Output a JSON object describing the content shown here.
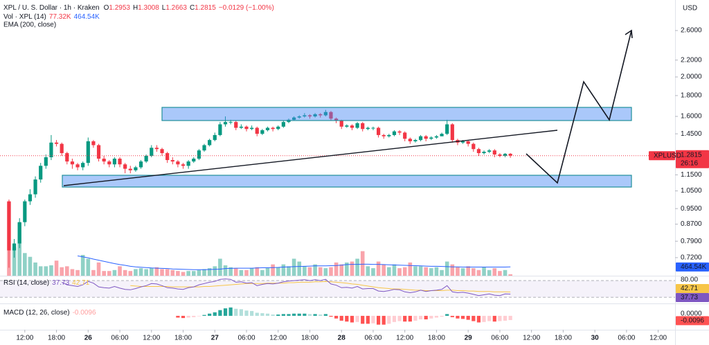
{
  "header": {
    "symbol": "XPL / U. S. Dollar · 1h · Kraken",
    "field_keys": [
      "O",
      "H",
      "L",
      "C"
    ],
    "change": "−0.0129 (−1.00%)",
    "volume_title": "Vol · XPL (14)",
    "ema_title": "EMA (200, close)",
    "rsi_title": "RSI (14, close)",
    "macd_title": "MACD (12, 26, close)",
    "currency": "USD",
    "countdown": "26:16",
    "ticker": "XPLUSD"
  },
  "chart_data": {
    "type": "candlestick",
    "scale": "log",
    "up_color": "#089981",
    "down_color": "#f23645",
    "x": [
      9,
      10,
      11,
      12,
      13,
      14,
      15,
      16,
      17,
      18,
      19,
      20,
      21,
      22,
      23,
      24,
      25,
      26,
      27,
      28,
      29,
      30,
      31,
      32,
      33,
      34,
      35,
      36,
      37,
      38,
      39,
      40,
      41,
      42,
      43,
      44,
      45,
      46,
      47,
      48,
      49,
      50,
      51,
      52,
      53,
      54,
      55,
      56,
      57,
      58,
      59,
      60,
      61,
      62,
      63,
      64,
      65,
      66,
      67,
      68,
      69,
      70,
      71,
      72,
      73,
      74,
      75,
      76,
      77,
      78,
      79,
      80,
      81,
      82,
      83,
      84,
      85,
      86,
      87,
      88,
      89,
      90,
      91,
      92,
      93,
      94,
      95,
      96,
      97,
      98,
      99,
      100,
      101,
      102,
      103,
      104
    ],
    "open": [
      0.99,
      0.75,
      0.78,
      0.88,
      0.99,
      1.03,
      1.12,
      1.21,
      1.27,
      1.38,
      1.37,
      1.3,
      1.24,
      1.22,
      1.2,
      1.23,
      1.39,
      1.36,
      1.26,
      1.24,
      1.22,
      1.26,
      1.22,
      1.19,
      1.18,
      1.2,
      1.24,
      1.28,
      1.34,
      1.33,
      1.3,
      1.25,
      1.24,
      1.22,
      1.21,
      1.24,
      1.26,
      1.32,
      1.36,
      1.4,
      1.44,
      1.53,
      1.55,
      1.55,
      1.5,
      1.51,
      1.49,
      1.5,
      1.45,
      1.48,
      1.5,
      1.49,
      1.51,
      1.55,
      1.57,
      1.59,
      1.6,
      1.61,
      1.6,
      1.62,
      1.61,
      1.64,
      1.58,
      1.56,
      1.51,
      1.52,
      1.5,
      1.54,
      1.49,
      1.5,
      1.5,
      1.44,
      1.43,
      1.44,
      1.47,
      1.46,
      1.41,
      1.39,
      1.4,
      1.43,
      1.41,
      1.42,
      1.43,
      1.45,
      1.53,
      1.4,
      1.38,
      1.39,
      1.37,
      1.33,
      1.3,
      1.31,
      1.32,
      1.29,
      1.28,
      1.2953
    ],
    "high": [
      1.0,
      0.8,
      0.9,
      1.0,
      1.06,
      1.14,
      1.23,
      1.29,
      1.44,
      1.4,
      1.38,
      1.31,
      1.26,
      1.23,
      1.24,
      1.42,
      1.4,
      1.37,
      1.28,
      1.25,
      1.27,
      1.27,
      1.23,
      1.21,
      1.21,
      1.25,
      1.29,
      1.36,
      1.36,
      1.34,
      1.31,
      1.27,
      1.25,
      1.23,
      1.25,
      1.27,
      1.33,
      1.37,
      1.41,
      1.46,
      1.55,
      1.6,
      1.57,
      1.56,
      1.53,
      1.52,
      1.52,
      1.51,
      1.49,
      1.51,
      1.51,
      1.52,
      1.56,
      1.58,
      1.6,
      1.61,
      1.63,
      1.62,
      1.63,
      1.63,
      1.66,
      1.65,
      1.59,
      1.57,
      1.53,
      1.53,
      1.55,
      1.55,
      1.51,
      1.51,
      1.51,
      1.45,
      1.45,
      1.48,
      1.48,
      1.47,
      1.42,
      1.41,
      1.44,
      1.44,
      1.43,
      1.44,
      1.46,
      1.57,
      1.54,
      1.41,
      1.4,
      1.4,
      1.38,
      1.34,
      1.32,
      1.33,
      1.33,
      1.3,
      1.3,
      1.3008
    ],
    "low": [
      0.68,
      0.72,
      0.76,
      0.86,
      0.97,
      1.01,
      1.1,
      1.19,
      1.25,
      1.35,
      1.28,
      1.22,
      1.19,
      1.18,
      1.18,
      1.21,
      1.34,
      1.24,
      1.22,
      1.2,
      1.2,
      1.2,
      1.16,
      1.16,
      1.17,
      1.19,
      1.23,
      1.27,
      1.31,
      1.28,
      1.23,
      1.22,
      1.2,
      1.19,
      1.19,
      1.23,
      1.25,
      1.31,
      1.35,
      1.39,
      1.43,
      1.51,
      1.53,
      1.48,
      1.49,
      1.47,
      1.48,
      1.43,
      1.44,
      1.47,
      1.47,
      1.48,
      1.5,
      1.54,
      1.56,
      1.58,
      1.59,
      1.58,
      1.59,
      1.59,
      1.6,
      1.56,
      1.54,
      1.49,
      1.5,
      1.48,
      1.49,
      1.47,
      1.48,
      1.48,
      1.42,
      1.41,
      1.42,
      1.43,
      1.44,
      1.39,
      1.37,
      1.38,
      1.39,
      1.39,
      1.4,
      1.41,
      1.43,
      1.44,
      1.38,
      1.36,
      1.37,
      1.35,
      1.31,
      1.28,
      1.29,
      1.3,
      1.27,
      1.27,
      1.27,
      1.2663
    ],
    "close": [
      0.75,
      0.78,
      0.88,
      0.99,
      1.03,
      1.12,
      1.21,
      1.27,
      1.38,
      1.37,
      1.3,
      1.24,
      1.22,
      1.2,
      1.23,
      1.39,
      1.36,
      1.26,
      1.24,
      1.22,
      1.26,
      1.22,
      1.19,
      1.18,
      1.2,
      1.24,
      1.28,
      1.34,
      1.33,
      1.3,
      1.25,
      1.24,
      1.22,
      1.21,
      1.24,
      1.26,
      1.32,
      1.36,
      1.4,
      1.44,
      1.53,
      1.55,
      1.55,
      1.5,
      1.51,
      1.49,
      1.5,
      1.45,
      1.48,
      1.5,
      1.49,
      1.51,
      1.55,
      1.57,
      1.59,
      1.6,
      1.61,
      1.6,
      1.62,
      1.61,
      1.64,
      1.58,
      1.56,
      1.51,
      1.52,
      1.5,
      1.54,
      1.49,
      1.5,
      1.5,
      1.44,
      1.43,
      1.44,
      1.47,
      1.46,
      1.41,
      1.39,
      1.4,
      1.43,
      1.41,
      1.42,
      1.43,
      1.45,
      1.53,
      1.4,
      1.38,
      1.39,
      1.37,
      1.33,
      1.3,
      1.31,
      1.32,
      1.29,
      1.28,
      1.2953,
      1.2815
    ],
    "ylim": [
      0.65,
      3.09
    ],
    "yticks": [
      {
        "value": 2.6,
        "label": "2.6000"
      },
      {
        "value": 2.2,
        "label": "2.2000"
      },
      {
        "value": 2,
        "label": "2.0000"
      },
      {
        "value": 1.8,
        "label": "1.8000"
      },
      {
        "value": 1.6,
        "label": "1.6000"
      },
      {
        "value": 1.45,
        "label": "1.4500"
      },
      {
        "value": 1.15,
        "label": "1.1500"
      },
      {
        "value": 1.05,
        "label": "1.0500"
      },
      {
        "value": 0.95,
        "label": "0.9500"
      },
      {
        "value": 0.87,
        "label": "0.8700"
      },
      {
        "value": 0.79,
        "label": "0.7900"
      },
      {
        "value": 0.72,
        "label": "0.7200"
      }
    ],
    "xlim": [
      7.3,
      135.2
    ],
    "xticks": [
      {
        "value": 12,
        "label": "12:00"
      },
      {
        "value": 18,
        "label": "18:00"
      },
      {
        "value": 24,
        "label": "26"
      },
      {
        "value": 30,
        "label": "06:00"
      },
      {
        "value": 36,
        "label": "12:00"
      },
      {
        "value": 42,
        "label": "18:00"
      },
      {
        "value": 48,
        "label": "27"
      },
      {
        "value": 54,
        "label": "06:00"
      },
      {
        "value": 60,
        "label": "12:00"
      },
      {
        "value": 66,
        "label": "18:00"
      },
      {
        "value": 72,
        "label": "28"
      },
      {
        "value": 78,
        "label": "06:00"
      },
      {
        "value": 84,
        "label": "12:00"
      },
      {
        "value": 90,
        "label": "18:00"
      },
      {
        "value": 96,
        "label": "29"
      },
      {
        "value": 102,
        "label": "06:00"
      },
      {
        "value": 108,
        "label": "12:00"
      },
      {
        "value": 114,
        "label": "18:00"
      },
      {
        "value": 120,
        "label": "30"
      },
      {
        "value": 126,
        "label": "06:00"
      },
      {
        "value": 132,
        "label": "12:00"
      }
    ],
    "volume": {
      "values": [
        3900000,
        1500000,
        2800000,
        1200000,
        1000000,
        700000,
        500000,
        500000,
        550000,
        800000,
        450000,
        500000,
        350000,
        300000,
        1100000,
        900000,
        300000,
        700000,
        250000,
        250000,
        300000,
        500000,
        300000,
        250000,
        350000,
        400000,
        350000,
        400000,
        450000,
        350000,
        350000,
        300000,
        250000,
        200000,
        250000,
        250000,
        300000,
        350000,
        400000,
        500000,
        900000,
        550000,
        450000,
        400000,
        300000,
        300000,
        400000,
        450000,
        300000,
        400000,
        600000,
        450000,
        600000,
        500000,
        900000,
        750000,
        500000,
        450000,
        600000,
        450000,
        400000,
        450000,
        700000,
        600000,
        700000,
        750000,
        900000,
        1300000,
        500000,
        400000,
        750000,
        600000,
        450000,
        600000,
        400000,
        450000,
        700000,
        500000,
        500000,
        450000,
        400000,
        450000,
        300000,
        750000,
        600000,
        450000,
        400000,
        500000,
        400000,
        300000,
        450000,
        300000,
        400000,
        250000,
        300000,
        77320
      ],
      "last_label": "77.32K",
      "ylim": [
        0,
        11000000
      ],
      "ma": {
        "color": "#2962ff",
        "last_label": "464.54K",
        "values": [
          null,
          null,
          null,
          null,
          null,
          null,
          null,
          null,
          null,
          null,
          null,
          null,
          null,
          1050000,
          1000000,
          950000,
          880000,
          820000,
          760000,
          700000,
          640000,
          590000,
          550000,
          500000,
          470000,
          450000,
          430000,
          410000,
          400000,
          390000,
          380000,
          360000,
          350000,
          340000,
          330000,
          320000,
          320000,
          320000,
          330000,
          340000,
          350000,
          380000,
          390000,
          400000,
          400000,
          400000,
          400000,
          410000,
          420000,
          420000,
          430000,
          440000,
          460000,
          470000,
          480000,
          490000,
          500000,
          510000,
          520000,
          520000,
          520000,
          530000,
          540000,
          560000,
          590000,
          600000,
          600000,
          610000,
          610000,
          600000,
          600000,
          590000,
          580000,
          570000,
          560000,
          550000,
          540000,
          530000,
          520000,
          510000,
          500000,
          500000,
          490000,
          480000,
          470000,
          470000,
          460000,
          460000,
          460000,
          460000,
          460000,
          460000,
          460000,
          460000,
          460000,
          464540
        ]
      }
    },
    "rsi": {
      "color": "#7e57c2",
      "ylim": [
        17,
        80
      ],
      "yticks": [
        {
          "value": 80,
          "label": "80.00"
        }
      ],
      "bands": [
        70,
        30
      ],
      "values": [
        null,
        null,
        null,
        null,
        null,
        null,
        null,
        null,
        null,
        null,
        66,
        60,
        58,
        56,
        60,
        68,
        64,
        55,
        53,
        52,
        56,
        52,
        49,
        48,
        51,
        55,
        58,
        63,
        62,
        58,
        53,
        52,
        50,
        49,
        53,
        55,
        60,
        63,
        66,
        68,
        73,
        74,
        73,
        66,
        67,
        64,
        65,
        58,
        61,
        63,
        62,
        64,
        67,
        69,
        70,
        71,
        72,
        70,
        72,
        70,
        73,
        62,
        59,
        53,
        54,
        52,
        56,
        50,
        51,
        51,
        45,
        44,
        46,
        49,
        48,
        43,
        41,
        43,
        47,
        44,
        46,
        47,
        49,
        58,
        43,
        41,
        42,
        40,
        37,
        34,
        36,
        38,
        35,
        34,
        38,
        37.73
      ],
      "ma": {
        "color": "#f7c548",
        "values": [
          null,
          null,
          null,
          null,
          null,
          null,
          null,
          null,
          null,
          null,
          null,
          null,
          null,
          null,
          null,
          null,
          null,
          null,
          null,
          null,
          null,
          null,
          null,
          58,
          57,
          56,
          56,
          56,
          56,
          56,
          56,
          55,
          55,
          55,
          55,
          55,
          55,
          56,
          56,
          57,
          58,
          59,
          60,
          61,
          62,
          63,
          63,
          63,
          63,
          64,
          64,
          64,
          64,
          65,
          65,
          66,
          66,
          66,
          67,
          67,
          68,
          67,
          66,
          65,
          64,
          62,
          61,
          59,
          57,
          55,
          53,
          52,
          51,
          50,
          50,
          49,
          48,
          47,
          47,
          46,
          46,
          46,
          46,
          47,
          47,
          46,
          46,
          45,
          45,
          44,
          44,
          44,
          43,
          43,
          43,
          42.71
        ]
      }
    },
    "macd": {
      "ylim": [
        -0.03,
        0.025
      ],
      "yticks": [
        {
          "value": 0,
          "label": "0.0000"
        }
      ],
      "colors": [
        "#26a69a",
        "#b2dfdb",
        "#ff5252",
        "#ffcdd2"
      ],
      "histogram": [
        null,
        null,
        null,
        null,
        null,
        null,
        null,
        null,
        null,
        null,
        null,
        null,
        null,
        null,
        null,
        null,
        null,
        null,
        null,
        null,
        null,
        null,
        null,
        null,
        null,
        null,
        null,
        null,
        null,
        null,
        null,
        null,
        -0.004,
        -0.005,
        -0.004,
        -0.003,
        -0.001,
        0.002,
        0.005,
        0.008,
        0.013,
        0.017,
        0.019,
        0.016,
        0.015,
        0.012,
        0.011,
        0.007,
        0.006,
        0.005,
        0.003,
        0.003,
        0.004,
        0.004,
        0.005,
        0.005,
        0.005,
        0.004,
        0.004,
        0.003,
        0.004,
        -0.002,
        -0.006,
        -0.011,
        -0.013,
        -0.015,
        -0.014,
        -0.018,
        -0.018,
        -0.017,
        -0.02,
        -0.02,
        -0.018,
        -0.014,
        -0.012,
        -0.013,
        -0.013,
        -0.011,
        -0.008,
        -0.008,
        -0.006,
        -0.004,
        -0.002,
        0.004,
        -0.003,
        -0.006,
        -0.007,
        -0.009,
        -0.012,
        -0.015,
        -0.014,
        -0.012,
        -0.013,
        -0.012,
        -0.011,
        -0.0096
      ]
    }
  }
}
